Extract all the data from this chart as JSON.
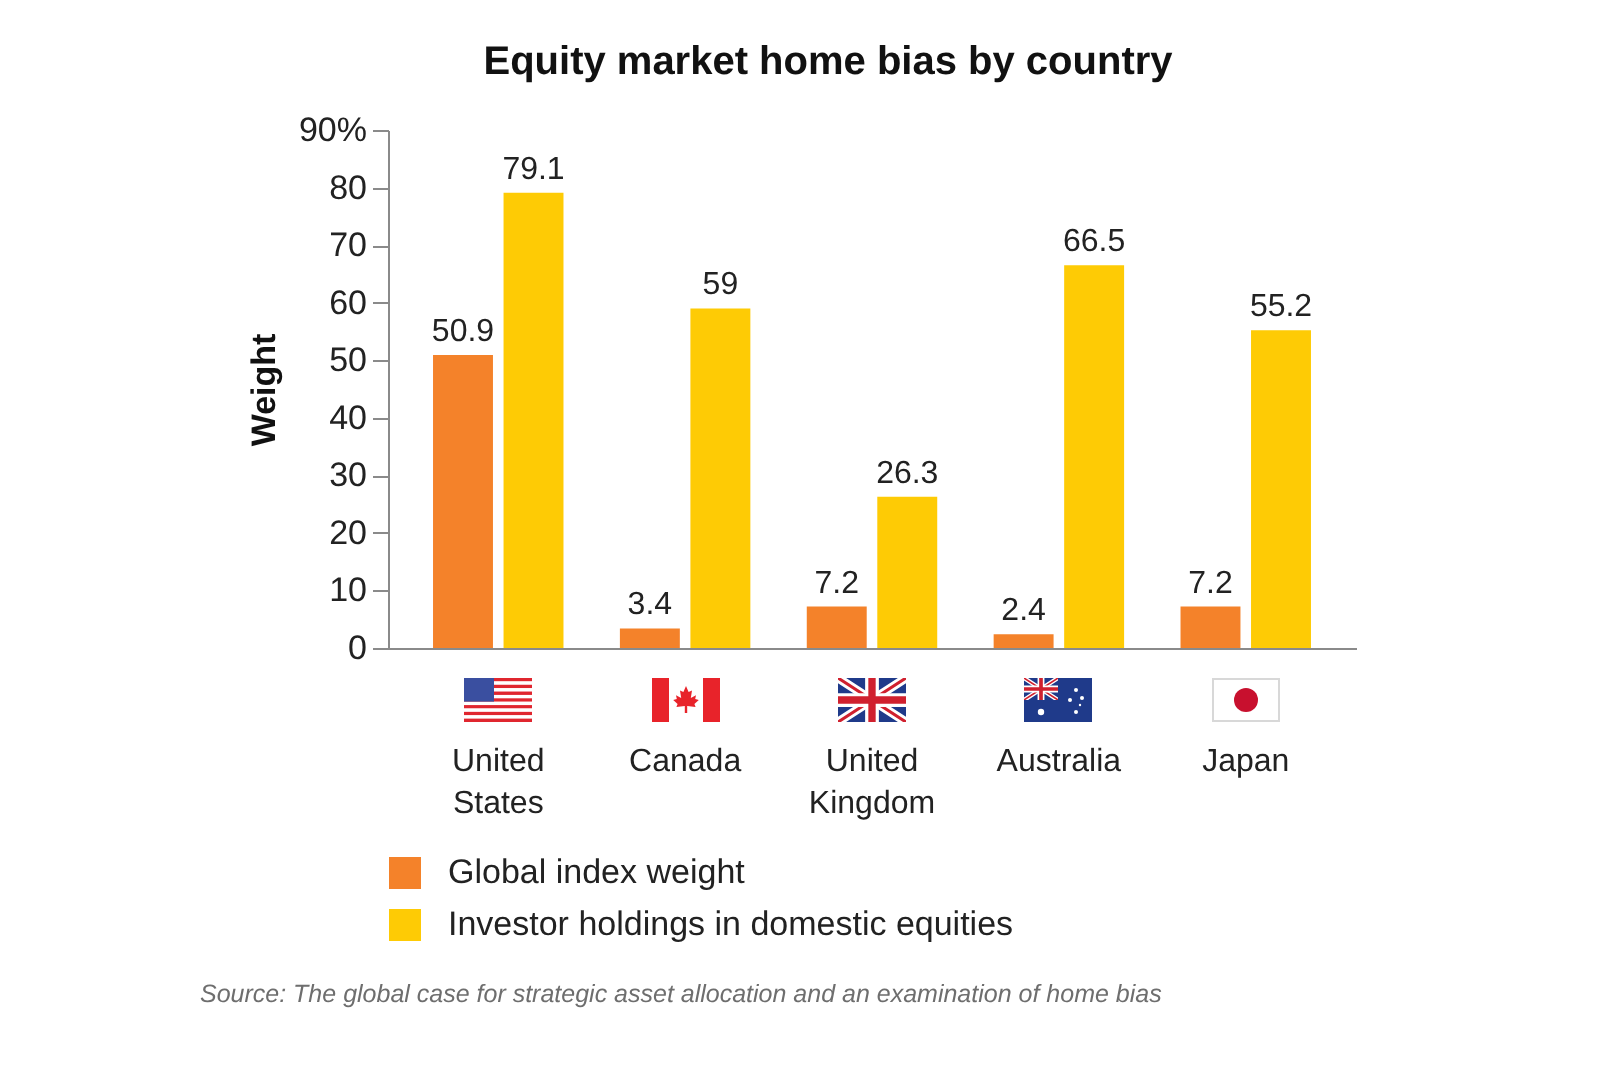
{
  "chart_data": {
    "type": "bar",
    "title": "Equity market home bias by country",
    "ylabel": "Weight",
    "categories": [
      "United States",
      "Canada",
      "United Kingdom",
      "Australia",
      "Japan"
    ],
    "series": [
      {
        "name": "Global index weight",
        "color": "#f4822a",
        "values": [
          50.9,
          3.4,
          7.2,
          2.4,
          7.2
        ]
      },
      {
        "name": "Investor holdings in domestic equities",
        "color": "#fecb05",
        "values": [
          79.1,
          59,
          26.3,
          66.5,
          55.2
        ]
      }
    ],
    "ylim": [
      0,
      90
    ],
    "yticks": [
      0,
      10,
      20,
      30,
      40,
      50,
      60,
      70,
      80,
      {
        "value": 90,
        "label": "90%"
      }
    ],
    "data_labels": true,
    "legend": "bottom",
    "annotations": [
      "Source: The global case for strategic asset allocation and an examination of home bias"
    ]
  }
}
